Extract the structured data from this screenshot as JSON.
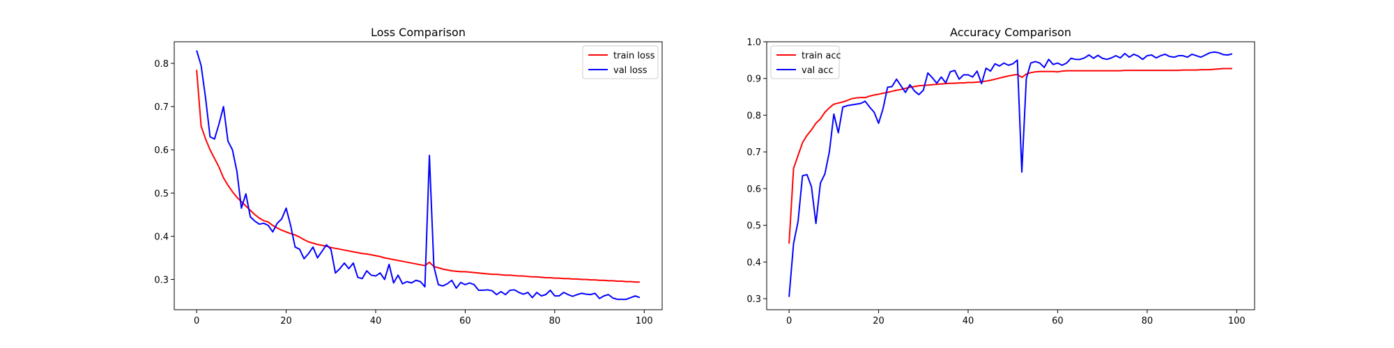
{
  "chart_data": [
    {
      "type": "line",
      "title": "Loss Comparison",
      "xlabel": "",
      "ylabel": "",
      "xlim": [
        -5,
        104
      ],
      "ylim": [
        0.23,
        0.85
      ],
      "xticks": [
        0,
        20,
        40,
        60,
        80,
        100
      ],
      "xtick_labels": [
        "0",
        "20",
        "40",
        "60",
        "80",
        "100"
      ],
      "yticks": [
        0.3,
        0.4,
        0.5,
        0.6,
        0.7,
        0.8
      ],
      "ytick_labels": [
        "0.3",
        "0.4",
        "0.5",
        "0.6",
        "0.7",
        "0.8"
      ],
      "grid": false,
      "legend_position": "top-right",
      "series": [
        {
          "name": "train loss",
          "color": "#ff0000",
          "x": [
            0,
            1,
            2,
            3,
            4,
            5,
            6,
            7,
            8,
            9,
            10,
            11,
            12,
            13,
            14,
            15,
            16,
            17,
            18,
            19,
            20,
            21,
            22,
            23,
            24,
            25,
            26,
            27,
            28,
            29,
            30,
            31,
            32,
            33,
            34,
            35,
            36,
            37,
            38,
            39,
            40,
            41,
            42,
            43,
            44,
            45,
            46,
            47,
            48,
            49,
            50,
            51,
            52,
            53,
            54,
            55,
            56,
            57,
            58,
            59,
            60,
            61,
            62,
            63,
            64,
            65,
            66,
            67,
            68,
            69,
            70,
            71,
            72,
            73,
            74,
            75,
            76,
            77,
            78,
            79,
            80,
            81,
            82,
            83,
            84,
            85,
            86,
            87,
            88,
            89,
            90,
            91,
            92,
            93,
            94,
            95,
            96,
            97,
            98,
            99
          ],
          "values": [
            0.785,
            0.655,
            0.625,
            0.6,
            0.58,
            0.56,
            0.535,
            0.518,
            0.503,
            0.49,
            0.48,
            0.47,
            0.46,
            0.45,
            0.442,
            0.436,
            0.433,
            0.425,
            0.419,
            0.414,
            0.41,
            0.406,
            0.403,
            0.398,
            0.392,
            0.387,
            0.384,
            0.381,
            0.379,
            0.377,
            0.374,
            0.372,
            0.37,
            0.368,
            0.366,
            0.364,
            0.362,
            0.36,
            0.359,
            0.357,
            0.355,
            0.353,
            0.35,
            0.348,
            0.346,
            0.344,
            0.342,
            0.34,
            0.338,
            0.336,
            0.334,
            0.332,
            0.34,
            0.33,
            0.327,
            0.324,
            0.322,
            0.32,
            0.319,
            0.318,
            0.318,
            0.317,
            0.316,
            0.315,
            0.314,
            0.313,
            0.312,
            0.312,
            0.311,
            0.31,
            0.31,
            0.309,
            0.308,
            0.308,
            0.307,
            0.306,
            0.306,
            0.305,
            0.304,
            0.304,
            0.303,
            0.303,
            0.302,
            0.302,
            0.301,
            0.301,
            0.3,
            0.3,
            0.299,
            0.299,
            0.298,
            0.298,
            0.297,
            0.297,
            0.296,
            0.296,
            0.295,
            0.295,
            0.294,
            0.294
          ]
        },
        {
          "name": "val loss",
          "color": "#0000ff",
          "x": [
            0,
            1,
            2,
            3,
            4,
            5,
            6,
            7,
            8,
            9,
            10,
            11,
            12,
            13,
            14,
            15,
            16,
            17,
            18,
            19,
            20,
            21,
            22,
            23,
            24,
            25,
            26,
            27,
            28,
            29,
            30,
            31,
            32,
            33,
            34,
            35,
            36,
            37,
            38,
            39,
            40,
            41,
            42,
            43,
            44,
            45,
            46,
            47,
            48,
            49,
            50,
            51,
            52,
            53,
            54,
            55,
            56,
            57,
            58,
            59,
            60,
            61,
            62,
            63,
            64,
            65,
            66,
            67,
            68,
            69,
            70,
            71,
            72,
            73,
            74,
            75,
            76,
            77,
            78,
            79,
            80,
            81,
            82,
            83,
            84,
            85,
            86,
            87,
            88,
            89,
            90,
            91,
            92,
            93,
            94,
            95,
            96,
            97,
            98,
            99
          ],
          "values": [
            0.83,
            0.795,
            0.72,
            0.63,
            0.625,
            0.66,
            0.7,
            0.62,
            0.6,
            0.55,
            0.465,
            0.498,
            0.445,
            0.435,
            0.428,
            0.43,
            0.425,
            0.41,
            0.43,
            0.44,
            0.465,
            0.425,
            0.375,
            0.37,
            0.348,
            0.36,
            0.375,
            0.35,
            0.365,
            0.38,
            0.37,
            0.315,
            0.325,
            0.338,
            0.325,
            0.338,
            0.305,
            0.302,
            0.32,
            0.31,
            0.308,
            0.315,
            0.3,
            0.335,
            0.292,
            0.31,
            0.29,
            0.295,
            0.292,
            0.298,
            0.295,
            0.283,
            0.587,
            0.33,
            0.288,
            0.285,
            0.29,
            0.298,
            0.28,
            0.293,
            0.288,
            0.292,
            0.288,
            0.275,
            0.275,
            0.276,
            0.274,
            0.265,
            0.272,
            0.265,
            0.275,
            0.276,
            0.27,
            0.266,
            0.27,
            0.258,
            0.27,
            0.262,
            0.265,
            0.275,
            0.262,
            0.262,
            0.27,
            0.265,
            0.261,
            0.265,
            0.268,
            0.266,
            0.265,
            0.268,
            0.256,
            0.262,
            0.265,
            0.257,
            0.254,
            0.254,
            0.254,
            0.258,
            0.262,
            0.258
          ]
        }
      ]
    },
    {
      "type": "line",
      "title": "Accuracy Comparison",
      "xlabel": "",
      "ylabel": "",
      "xlim": [
        -5,
        104
      ],
      "ylim": [
        0.27,
        1.0
      ],
      "xticks": [
        0,
        20,
        40,
        60,
        80,
        100
      ],
      "xtick_labels": [
        "0",
        "20",
        "40",
        "60",
        "80",
        "100"
      ],
      "yticks": [
        0.3,
        0.4,
        0.5,
        0.6,
        0.7,
        0.8,
        0.9,
        1.0
      ],
      "ytick_labels": [
        "0.3",
        "0.4",
        "0.5",
        "0.6",
        "0.7",
        "0.8",
        "0.9",
        "1.0"
      ],
      "grid": false,
      "legend_position": "top-left",
      "series": [
        {
          "name": "train acc",
          "color": "#ff0000",
          "x": [
            0,
            1,
            2,
            3,
            4,
            5,
            6,
            7,
            8,
            9,
            10,
            11,
            12,
            13,
            14,
            15,
            16,
            17,
            18,
            19,
            20,
            21,
            22,
            23,
            24,
            25,
            26,
            27,
            28,
            29,
            30,
            31,
            32,
            33,
            34,
            35,
            36,
            37,
            38,
            39,
            40,
            41,
            42,
            43,
            44,
            45,
            46,
            47,
            48,
            49,
            50,
            51,
            52,
            53,
            54,
            55,
            56,
            57,
            58,
            59,
            60,
            61,
            62,
            63,
            64,
            65,
            66,
            67,
            68,
            69,
            70,
            71,
            72,
            73,
            74,
            75,
            76,
            77,
            78,
            79,
            80,
            81,
            82,
            83,
            84,
            85,
            86,
            87,
            88,
            89,
            90,
            91,
            92,
            93,
            94,
            95,
            96,
            97,
            98,
            99
          ],
          "values": [
            0.45,
            0.655,
            0.69,
            0.725,
            0.745,
            0.76,
            0.778,
            0.79,
            0.808,
            0.82,
            0.83,
            0.833,
            0.836,
            0.84,
            0.845,
            0.847,
            0.848,
            0.848,
            0.852,
            0.855,
            0.857,
            0.86,
            0.862,
            0.865,
            0.868,
            0.87,
            0.873,
            0.876,
            0.878,
            0.88,
            0.881,
            0.882,
            0.883,
            0.884,
            0.885,
            0.886,
            0.887,
            0.887,
            0.888,
            0.888,
            0.889,
            0.889,
            0.89,
            0.891,
            0.893,
            0.895,
            0.898,
            0.901,
            0.904,
            0.907,
            0.909,
            0.911,
            0.903,
            0.912,
            0.916,
            0.918,
            0.919,
            0.919,
            0.919,
            0.919,
            0.918,
            0.92,
            0.921,
            0.921,
            0.921,
            0.921,
            0.921,
            0.921,
            0.921,
            0.921,
            0.921,
            0.921,
            0.921,
            0.921,
            0.921,
            0.922,
            0.922,
            0.922,
            0.922,
            0.922,
            0.922,
            0.922,
            0.922,
            0.922,
            0.922,
            0.922,
            0.922,
            0.922,
            0.923,
            0.923,
            0.923,
            0.923,
            0.924,
            0.924,
            0.924,
            0.925,
            0.926,
            0.927,
            0.927,
            0.927
          ]
        },
        {
          "name": "val acc",
          "color": "#0000ff",
          "x": [
            0,
            1,
            2,
            3,
            4,
            5,
            6,
            7,
            8,
            9,
            10,
            11,
            12,
            13,
            14,
            15,
            16,
            17,
            18,
            19,
            20,
            21,
            22,
            23,
            24,
            25,
            26,
            27,
            28,
            29,
            30,
            31,
            32,
            33,
            34,
            35,
            36,
            37,
            38,
            39,
            40,
            41,
            42,
            43,
            44,
            45,
            46,
            47,
            48,
            49,
            50,
            51,
            52,
            53,
            54,
            55,
            56,
            57,
            58,
            59,
            60,
            61,
            62,
            63,
            64,
            65,
            66,
            67,
            68,
            69,
            70,
            71,
            72,
            73,
            74,
            75,
            76,
            77,
            78,
            79,
            80,
            81,
            82,
            83,
            84,
            85,
            86,
            87,
            88,
            89,
            90,
            91,
            92,
            93,
            94,
            95,
            96,
            97,
            98,
            99
          ],
          "values": [
            0.305,
            0.45,
            0.51,
            0.635,
            0.638,
            0.605,
            0.505,
            0.615,
            0.64,
            0.7,
            0.803,
            0.752,
            0.822,
            0.826,
            0.828,
            0.83,
            0.832,
            0.838,
            0.822,
            0.808,
            0.778,
            0.818,
            0.876,
            0.878,
            0.898,
            0.88,
            0.862,
            0.883,
            0.866,
            0.856,
            0.868,
            0.915,
            0.902,
            0.887,
            0.904,
            0.888,
            0.918,
            0.922,
            0.898,
            0.91,
            0.91,
            0.904,
            0.92,
            0.886,
            0.928,
            0.92,
            0.94,
            0.934,
            0.942,
            0.936,
            0.94,
            0.95,
            0.645,
            0.9,
            0.942,
            0.946,
            0.942,
            0.93,
            0.952,
            0.938,
            0.942,
            0.936,
            0.942,
            0.955,
            0.952,
            0.952,
            0.956,
            0.964,
            0.955,
            0.963,
            0.955,
            0.952,
            0.956,
            0.962,
            0.956,
            0.968,
            0.958,
            0.966,
            0.961,
            0.952,
            0.962,
            0.964,
            0.956,
            0.962,
            0.966,
            0.96,
            0.958,
            0.962,
            0.962,
            0.958,
            0.966,
            0.962,
            0.958,
            0.964,
            0.97,
            0.972,
            0.97,
            0.965,
            0.964,
            0.967
          ]
        }
      ]
    }
  ]
}
